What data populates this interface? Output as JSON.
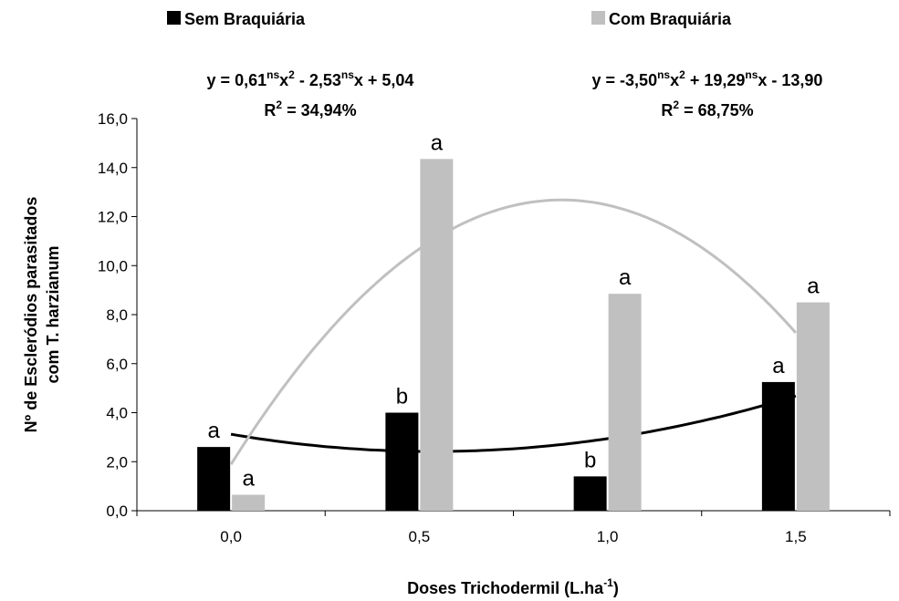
{
  "chart_data": {
    "type": "bar",
    "categories": [
      "0,0",
      "0,5",
      "1,0",
      "1,5"
    ],
    "x_label": [
      {
        "text": "Doses Trichodermil (L.ha"
      },
      {
        "text": "-1",
        "sup": true
      },
      {
        "text": ")"
      }
    ],
    "y_label": [
      "Nº de Escleródios parasitados",
      "com T. harzianum"
    ],
    "ylim": [
      0,
      16
    ],
    "yticks": [
      {
        "value": 0,
        "label": "0,0"
      },
      {
        "value": 2,
        "label": "2,0"
      },
      {
        "value": 4,
        "label": "4,0"
      },
      {
        "value": 6,
        "label": "6,0"
      },
      {
        "value": 8,
        "label": "8,0"
      },
      {
        "value": 10,
        "label": "10,0"
      },
      {
        "value": 12,
        "label": "12,0"
      },
      {
        "value": 14,
        "label": "14,0"
      },
      {
        "value": 16,
        "label": "16,0"
      }
    ],
    "series": [
      {
        "name": "Sem Braquiária",
        "color": "#000000",
        "values": [
          2.6,
          4.0,
          1.4,
          5.25
        ],
        "letters": [
          "a",
          "b",
          "b",
          "a"
        ],
        "trend": {
          "coefficients": [
            0.61,
            -2.53,
            5.04
          ],
          "equation": [
            {
              "text": "y = 0,61"
            },
            {
              "text": "ns",
              "sup": true
            },
            {
              "text": "x"
            },
            {
              "text": "2",
              "sup": true
            },
            {
              "text": " - 2,53"
            },
            {
              "text": "ns",
              "sup": true
            },
            {
              "text": "x + 5,04"
            }
          ],
          "r2": [
            {
              "text": "R"
            },
            {
              "text": "2",
              "sup": true
            },
            {
              "text": " = 34,94%"
            }
          ]
        }
      },
      {
        "name": "Com Braquiária",
        "color": "#c0c0c0",
        "values": [
          0.65,
          14.35,
          8.85,
          8.5
        ],
        "letters": [
          "a",
          "a",
          "a",
          "a"
        ],
        "trend": {
          "coefficients": [
            -3.5,
            19.29,
            -13.9
          ],
          "equation": [
            {
              "text": "y = -3,50"
            },
            {
              "text": "ns",
              "sup": true
            },
            {
              "text": "x"
            },
            {
              "text": "2",
              "sup": true
            },
            {
              "text": " + 19,29"
            },
            {
              "text": "ns",
              "sup": true
            },
            {
              "text": "x - 13,90"
            }
          ],
          "r2": [
            {
              "text": "R"
            },
            {
              "text": "2",
              "sup": true
            },
            {
              "text": " = 68,75%"
            }
          ]
        }
      }
    ]
  }
}
